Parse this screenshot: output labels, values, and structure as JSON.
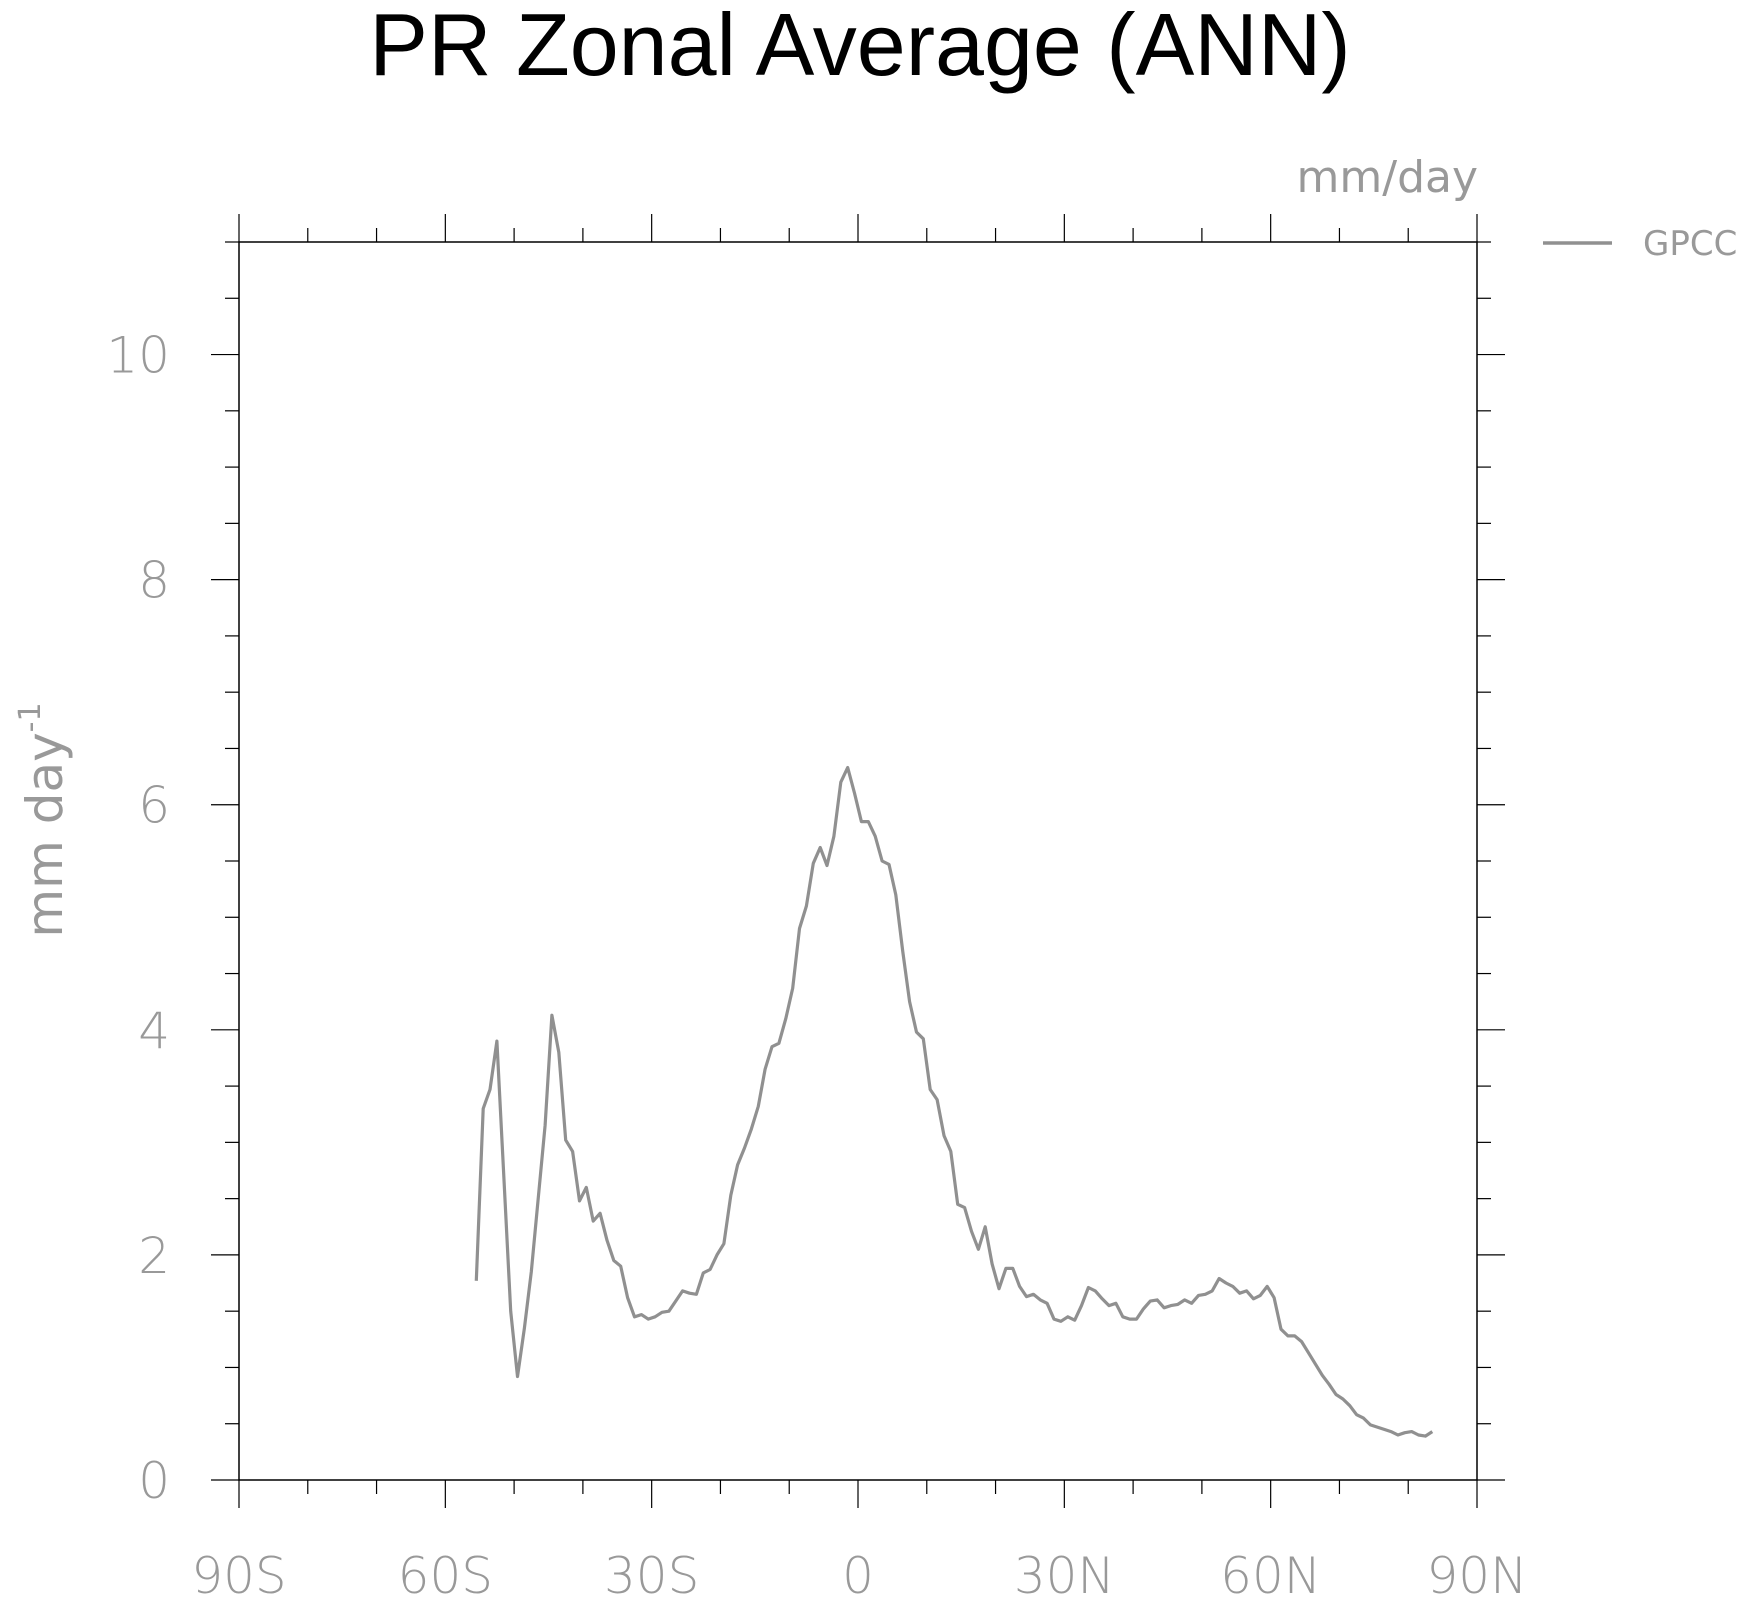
{
  "chart_data": {
    "type": "line",
    "title": "PR Zonal Average (ANN)",
    "units_label": "mm/day",
    "ylabel": "mm day",
    "ylabel_superscript": "-1",
    "xlim": [
      -90,
      90
    ],
    "ylim": [
      0,
      11
    ],
    "x_ticks": [
      {
        "value": -90,
        "label": "90S"
      },
      {
        "value": -60,
        "label": "60S"
      },
      {
        "value": -30,
        "label": "30S"
      },
      {
        "value": 0,
        "label": "0"
      },
      {
        "value": 30,
        "label": "30N"
      },
      {
        "value": 60,
        "label": "60N"
      },
      {
        "value": 90,
        "label": "90N"
      }
    ],
    "y_ticks": [
      {
        "value": 0,
        "label": "0"
      },
      {
        "value": 2,
        "label": "2"
      },
      {
        "value": 4,
        "label": "4"
      },
      {
        "value": 6,
        "label": "6"
      },
      {
        "value": 8,
        "label": "8"
      },
      {
        "value": 10,
        "label": "10"
      }
    ],
    "x_minor_step": 10,
    "y_minor_step": 0.5,
    "legend_position": "top-right",
    "series": [
      {
        "name": "GPCC",
        "color": "#909090",
        "x": [
          -55.5,
          -54.5,
          -53.5,
          -52.5,
          -51.5,
          -50.5,
          -49.5,
          -48.5,
          -47.5,
          -46.5,
          -45.5,
          -44.5,
          -43.5,
          -42.5,
          -41.5,
          -40.5,
          -39.5,
          -38.5,
          -37.5,
          -36.5,
          -35.5,
          -34.5,
          -33.5,
          -32.5,
          -31.5,
          -30.5,
          -29.5,
          -28.5,
          -27.5,
          -26.5,
          -25.5,
          -24.5,
          -23.5,
          -22.5,
          -21.5,
          -20.5,
          -19.5,
          -18.5,
          -17.5,
          -16.5,
          -15.5,
          -14.5,
          -13.5,
          -12.5,
          -11.5,
          -10.5,
          -9.5,
          -8.5,
          -7.5,
          -6.5,
          -5.5,
          -4.5,
          -3.5,
          -2.5,
          -1.5,
          -0.5,
          0.5,
          1.5,
          2.5,
          3.5,
          4.5,
          5.5,
          6.5,
          7.5,
          8.5,
          9.5,
          10.5,
          11.5,
          12.5,
          13.5,
          14.5,
          15.5,
          16.5,
          17.5,
          18.5,
          19.5,
          20.5,
          21.5,
          22.5,
          23.5,
          24.5,
          25.5,
          26.5,
          27.5,
          28.5,
          29.5,
          30.5,
          31.5,
          32.5,
          33.5,
          34.5,
          35.5,
          36.5,
          37.5,
          38.5,
          39.5,
          40.5,
          41.5,
          42.5,
          43.5,
          44.5,
          45.5,
          46.5,
          47.5,
          48.5,
          49.5,
          50.5,
          51.5,
          52.5,
          53.5,
          54.5,
          55.5,
          56.5,
          57.5,
          58.5,
          59.5,
          60.5,
          61.5,
          62.5,
          63.5,
          64.5,
          65.5,
          66.5,
          67.5,
          68.5,
          69.5,
          70.5,
          71.5,
          72.5,
          73.5,
          74.5,
          75.5,
          76.5,
          77.5,
          78.5,
          79.5,
          80.5,
          81.5,
          82.5,
          83.5
        ],
        "values": [
          1.77,
          3.3,
          3.47,
          3.9,
          2.7,
          1.5,
          0.92,
          1.35,
          1.85,
          2.5,
          3.15,
          4.13,
          3.8,
          3.02,
          2.92,
          2.48,
          2.6,
          2.3,
          2.37,
          2.13,
          1.95,
          1.9,
          1.62,
          1.45,
          1.47,
          1.43,
          1.45,
          1.49,
          1.5,
          1.59,
          1.68,
          1.66,
          1.65,
          1.84,
          1.87,
          2.0,
          2.1,
          2.53,
          2.8,
          2.95,
          3.12,
          3.32,
          3.65,
          3.85,
          3.88,
          4.1,
          4.37,
          4.9,
          5.1,
          5.48,
          5.62,
          5.46,
          5.72,
          6.2,
          6.33,
          6.1,
          5.85,
          5.85,
          5.72,
          5.5,
          5.47,
          5.2,
          4.7,
          4.25,
          3.98,
          3.92,
          3.47,
          3.38,
          3.06,
          2.92,
          2.45,
          2.42,
          2.21,
          2.05,
          2.25,
          1.92,
          1.7,
          1.88,
          1.88,
          1.72,
          1.63,
          1.65,
          1.6,
          1.57,
          1.43,
          1.41,
          1.45,
          1.42,
          1.55,
          1.71,
          1.68,
          1.61,
          1.55,
          1.57,
          1.45,
          1.43,
          1.43,
          1.52,
          1.59,
          1.6,
          1.53,
          1.55,
          1.56,
          1.6,
          1.57,
          1.64,
          1.65,
          1.68,
          1.79,
          1.75,
          1.72,
          1.66,
          1.68,
          1.61,
          1.64,
          1.72,
          1.62,
          1.34,
          1.28,
          1.28,
          1.23,
          1.13,
          1.03,
          0.93,
          0.85,
          0.76,
          0.72,
          0.66,
          0.58,
          0.55,
          0.49,
          0.47,
          0.45,
          0.43,
          0.4,
          0.42,
          0.43,
          0.4,
          0.39,
          0.43
        ]
      }
    ]
  }
}
